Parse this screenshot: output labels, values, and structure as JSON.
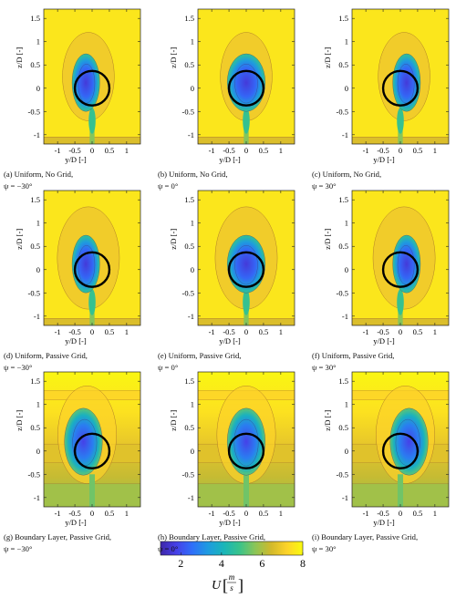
{
  "chart_data": {
    "type": "heatmap",
    "panels": [
      {
        "caption_line1": "(a) Uniform, No Grid,",
        "caption_line2": "ψ = −30°",
        "inflow": "uniform",
        "grid": "none",
        "psi_deg": -30
      },
      {
        "caption_line1": "(b) Uniform, No Grid,",
        "caption_line2": "ψ = 0°",
        "inflow": "uniform",
        "grid": "none",
        "psi_deg": 0
      },
      {
        "caption_line1": "(c) Uniform, No Grid,",
        "caption_line2": "ψ = 30°",
        "inflow": "uniform",
        "grid": "none",
        "psi_deg": 30
      },
      {
        "caption_line1": "(d) Uniform, Passive Grid,",
        "caption_line2": "ψ = −30°",
        "inflow": "uniform",
        "grid": "passive",
        "psi_deg": -30
      },
      {
        "caption_line1": "(e) Uniform, Passive Grid,",
        "caption_line2": "ψ = 0°",
        "inflow": "uniform",
        "grid": "passive",
        "psi_deg": 0
      },
      {
        "caption_line1": "(f) Uniform, Passive Grid,",
        "caption_line2": "ψ = 30°",
        "inflow": "uniform",
        "grid": "passive",
        "psi_deg": 30
      },
      {
        "caption_line1": "(g) Boundary Layer, Passive Grid,",
        "caption_line2": "ψ = −30°",
        "inflow": "boundary_layer",
        "grid": "passive",
        "psi_deg": -30
      },
      {
        "caption_line1": "(h) Boundary Layer, Passive Grid,",
        "caption_line2": "ψ = 0°",
        "inflow": "boundary_layer",
        "grid": "passive",
        "psi_deg": 0
      },
      {
        "caption_line1": "(i) Boundary Layer, Passive Grid,",
        "caption_line2": "ψ = 30°",
        "inflow": "boundary_layer",
        "grid": "passive",
        "psi_deg": 30
      }
    ],
    "xlabel": "y/D [-]",
    "ylabel": "z/D [-]",
    "xlim": [
      -1.4,
      1.4
    ],
    "ylim": [
      -1.2,
      1.7
    ],
    "xticks": [
      -1,
      -0.5,
      0,
      0.5,
      1
    ],
    "xtick_labels": [
      "-1",
      "-0.5",
      "0",
      "0.5",
      "1"
    ],
    "yticks": [
      -1,
      -0.5,
      0,
      0.5,
      1,
      1.5
    ],
    "ytick_labels": [
      "-1",
      "-0.5",
      "0",
      "0.5",
      "1",
      "1.5"
    ],
    "rotor_circle": {
      "center_y": 0,
      "center_z": 0,
      "radius": 0.5
    },
    "colorbar": {
      "label": "U [m/s]",
      "label_main": "U",
      "label_num": "m",
      "label_den": "s",
      "min": 1,
      "max": 8,
      "ticks": [
        2,
        4,
        6,
        8
      ],
      "tick_labels": [
        "2",
        "4",
        "6",
        "8"
      ],
      "colormap": "parula",
      "stops": [
        "#3e26a8",
        "#4640e8",
        "#2f6ff9",
        "#1e9be0",
        "#19b5b9",
        "#39c38b",
        "#8cc556",
        "#d2b92b",
        "#fdd32a",
        "#f9fb0e"
      ]
    },
    "grid": false
  }
}
